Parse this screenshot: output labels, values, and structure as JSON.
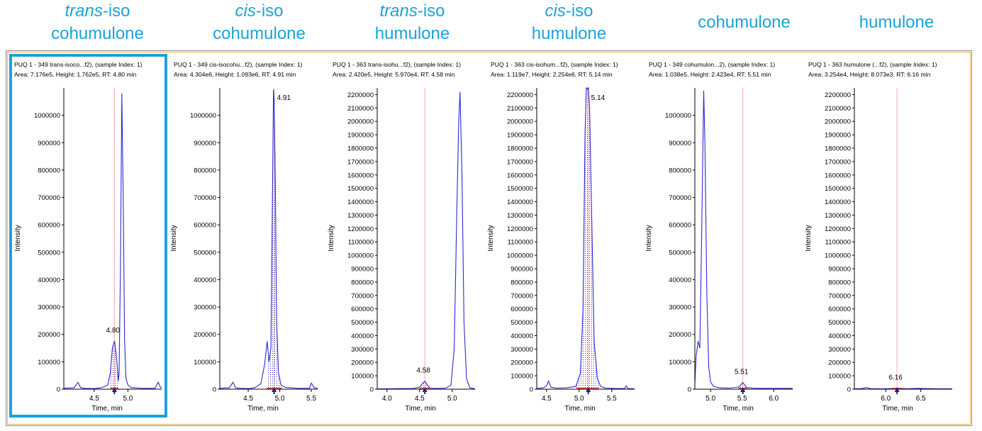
{
  "titles": [
    {
      "italic": "trans",
      "rest": "-iso",
      "line2": "cohumulone"
    },
    {
      "italic": "cis",
      "rest": "-iso",
      "line2": "cohumulone"
    },
    {
      "italic": "trans",
      "rest": "-iso",
      "line2": "humulone"
    },
    {
      "italic": "cis",
      "rest": "-iso",
      "line2": "humulone"
    },
    {
      "italic": "",
      "rest": "",
      "line2": "cohumulone"
    },
    {
      "italic": "",
      "rest": "",
      "line2": "humulone"
    }
  ],
  "colors": {
    "title": "#1aa3d9",
    "trace": "#2b2bd6",
    "rt_marker": "#f4a6b3",
    "baseline": "#e0202a",
    "arrow": "#1a2a6b",
    "highlight": "#1aa3d9"
  },
  "chart_data": [
    {
      "type": "line",
      "header1": "PUQ 1 - 349 trans-isoco...f2), (sample Index: 1)",
      "header2": "Area: 7.176e5, Height: 1.762e5, RT: 4.80 min",
      "xlabel": "Time, min",
      "ylabel": "Intensity",
      "xlim": [
        4.05,
        5.5
      ],
      "ylim": [
        0,
        1100000
      ],
      "yticks": [
        0,
        100000,
        200000,
        300000,
        400000,
        500000,
        600000,
        700000,
        800000,
        900000,
        1000000
      ],
      "ytick_labels": [
        "0",
        "100000",
        "200000",
        "300000",
        "400000",
        "500000",
        "600000",
        "700000",
        "800000",
        "900000",
        "1000000"
      ],
      "xticks": [
        4.5,
        5.0
      ],
      "xtick_labels": [
        "4.5",
        "5.0"
      ],
      "rt": 4.8,
      "rt_label": "4.80",
      "integrated": [
        4.74,
        4.86
      ],
      "series": [
        {
          "x": [
            4.05,
            4.2,
            4.26,
            4.3,
            4.36,
            4.5,
            4.6,
            4.7,
            4.74,
            4.77,
            4.8,
            4.83,
            4.86,
            4.87,
            4.89,
            4.91,
            4.93,
            4.95,
            4.97,
            5.0,
            5.05,
            5.2,
            5.4,
            5.45,
            5.48,
            5.5
          ],
          "y": [
            3000,
            5000,
            25000,
            5000,
            3000,
            2000,
            5000,
            15000,
            60000,
            150000,
            176000,
            120000,
            30000,
            60000,
            450000,
            1080000,
            700000,
            180000,
            40000,
            15000,
            6000,
            3000,
            3000,
            25000,
            8000,
            3000
          ]
        }
      ]
    },
    {
      "type": "line",
      "header1": "PUQ 1 - 349 cis-isocohu...f2), (sample Index: 1)",
      "header2": "Area: 4.304e6, Height: 1.093e6, RT: 4.91 min",
      "xlabel": "Time, min",
      "ylabel": "Intensity",
      "xlim": [
        4.05,
        5.6
      ],
      "ylim": [
        0,
        1100000
      ],
      "yticks": [
        0,
        100000,
        200000,
        300000,
        400000,
        500000,
        600000,
        700000,
        800000,
        900000,
        1000000
      ],
      "ytick_labels": [
        "0",
        "100000",
        "200000",
        "300000",
        "400000",
        "500000",
        "600000",
        "700000",
        "800000",
        "900000",
        "1000000"
      ],
      "xticks": [
        4.5,
        5.0,
        5.5
      ],
      "xtick_labels": [
        "4.5",
        "5.0",
        "5.5"
      ],
      "rt": 4.91,
      "rt_label": "4.91",
      "integrated": [
        4.79,
        5.03
      ],
      "series": [
        {
          "x": [
            4.05,
            4.2,
            4.26,
            4.3,
            4.36,
            4.5,
            4.6,
            4.7,
            4.76,
            4.8,
            4.83,
            4.86,
            4.88,
            4.9,
            4.91,
            4.93,
            4.95,
            4.98,
            5.02,
            5.1,
            5.3,
            5.47,
            5.5,
            5.55,
            5.6
          ],
          "y": [
            3000,
            5000,
            25000,
            5000,
            3000,
            2000,
            5000,
            20000,
            90000,
            175000,
            100000,
            150000,
            600000,
            1093000,
            1060000,
            760000,
            250000,
            60000,
            15000,
            6000,
            3000,
            3000,
            22000,
            5000,
            3000
          ]
        }
      ]
    },
    {
      "type": "line",
      "header1": "PUQ 1 - 363 trans-isohu...f2), (sample Index: 1)",
      "header2": "Area: 2.420e5, Height: 5.970e4, RT: 4.58 min",
      "xlabel": "Time, min",
      "ylabel": "Intensity",
      "xlim": [
        3.85,
        5.35
      ],
      "ylim": [
        0,
        2250000
      ],
      "yticks": [
        0,
        100000,
        200000,
        300000,
        400000,
        500000,
        600000,
        700000,
        800000,
        900000,
        1000000,
        1100000,
        1200000,
        1300000,
        1400000,
        1500000,
        1600000,
        1700000,
        1800000,
        1900000,
        2000000,
        2100000,
        2200000
      ],
      "ytick_labels": [
        "0",
        "100000",
        "200000",
        "300000",
        "400000",
        "500000",
        "600000",
        "700000",
        "800000",
        "900000",
        "1000000",
        "1100000",
        "1200000",
        "1300000",
        "1400000",
        "1500000",
        "1600000",
        "1700000",
        "1800000",
        "1900000",
        "2000000",
        "2100000",
        "2200000"
      ],
      "xticks": [
        4.0,
        4.5,
        5.0
      ],
      "xtick_labels": [
        "4.0",
        "4.5",
        "5.0"
      ],
      "rt": 4.58,
      "rt_label": "4.58",
      "integrated": [
        4.5,
        4.66
      ],
      "series": [
        {
          "x": [
            3.85,
            4.0,
            4.2,
            4.4,
            4.5,
            4.55,
            4.58,
            4.62,
            4.66,
            4.75,
            4.9,
            4.98,
            5.03,
            5.07,
            5.1,
            5.12,
            5.15,
            5.18,
            5.22,
            5.27,
            5.35
          ],
          "y": [
            2000,
            3000,
            4000,
            5000,
            15000,
            45000,
            59700,
            30000,
            8000,
            5000,
            8000,
            30000,
            300000,
            1300000,
            2000000,
            2220000,
            1600000,
            500000,
            80000,
            10000,
            3000
          ]
        }
      ]
    },
    {
      "type": "line",
      "header1": "PUQ 1 - 363 cis-isohum...f2), (sample Index: 1)",
      "header2": "Area: 1.119e7, Height: 2.254e6, RT: 5.14 min",
      "xlabel": "Time, min",
      "ylabel": "Intensity",
      "xlim": [
        4.35,
        5.85
      ],
      "ylim": [
        0,
        2250000
      ],
      "yticks": [
        0,
        100000,
        200000,
        300000,
        400000,
        500000,
        600000,
        700000,
        800000,
        900000,
        1000000,
        1100000,
        1200000,
        1300000,
        1400000,
        1500000,
        1600000,
        1700000,
        1800000,
        1900000,
        2000000,
        2100000,
        2200000
      ],
      "ytick_labels": [
        "0",
        "100000",
        "200000",
        "300000",
        "400000",
        "500000",
        "600000",
        "700000",
        "800000",
        "900000",
        "1000000",
        "1100000",
        "1200000",
        "1300000",
        "1400000",
        "1500000",
        "1600000",
        "1700000",
        "1800000",
        "1900000",
        "2000000",
        "2100000",
        "2200000"
      ],
      "xticks": [
        4.5,
        5.0,
        5.5
      ],
      "xtick_labels": [
        "4.5",
        "5.0",
        "5.5"
      ],
      "rt": 5.14,
      "rt_label": "5.14",
      "integrated": [
        4.96,
        5.3
      ],
      "series": [
        {
          "x": [
            4.35,
            4.45,
            4.5,
            4.53,
            4.57,
            4.65,
            4.8,
            4.95,
            5.02,
            5.06,
            5.09,
            5.11,
            5.13,
            5.14,
            5.16,
            5.19,
            5.23,
            5.28,
            5.33,
            5.4,
            5.55,
            5.7,
            5.72,
            5.75,
            5.85
          ],
          "y": [
            5000,
            10000,
            25000,
            60000,
            15000,
            8000,
            10000,
            20000,
            120000,
            600000,
            1900000,
            2250000,
            2240000,
            2254000,
            2100000,
            1350000,
            350000,
            80000,
            20000,
            8000,
            5000,
            5000,
            25000,
            5000,
            3000
          ]
        }
      ]
    },
    {
      "type": "line",
      "header1": "PUQ 1 - 349 cohumulon...2), (sample Index: 1)",
      "header2": "Area: 1.038e5, Height: 2.423e4, RT: 5.51 min",
      "xlabel": "Time, min",
      "ylabel": "Intensity",
      "xlim": [
        4.75,
        6.3
      ],
      "ylim": [
        0,
        1100000
      ],
      "yticks": [
        0,
        100000,
        200000,
        300000,
        400000,
        500000,
        600000,
        700000,
        800000,
        900000,
        1000000
      ],
      "ytick_labels": [
        "0",
        "100000",
        "200000",
        "300000",
        "400000",
        "500000",
        "600000",
        "700000",
        "800000",
        "900000",
        "1000000"
      ],
      "xticks": [
        5.0,
        5.5,
        6.0
      ],
      "xtick_labels": [
        "5.0",
        "5.5",
        "6.0"
      ],
      "rt": 5.51,
      "rt_label": "5.51",
      "integrated": [
        5.44,
        5.58
      ],
      "series": [
        {
          "x": [
            4.75,
            4.77,
            4.8,
            4.83,
            4.86,
            4.89,
            4.91,
            4.94,
            4.97,
            5.0,
            5.05,
            5.15,
            5.3,
            5.45,
            5.51,
            5.57,
            5.7,
            5.9,
            6.1,
            6.25,
            6.3
          ],
          "y": [
            20000,
            120000,
            175000,
            150000,
            600000,
            1090000,
            900000,
            350000,
            80000,
            25000,
            10000,
            5000,
            4000,
            8000,
            24230,
            6000,
            3000,
            3000,
            3000,
            3000,
            3000
          ]
        }
      ]
    },
    {
      "type": "line",
      "header1": "PUQ 1 - 363 humulone (...f2), (sample Index: 1)",
      "header2": "Area: 3.254e4, Height: 8.073e3, RT: 6.16 min",
      "xlabel": "Time, min",
      "ylabel": "Intensity",
      "xlim": [
        5.55,
        6.95
      ],
      "ylim": [
        0,
        2250000
      ],
      "yticks": [
        0,
        100000,
        200000,
        300000,
        400000,
        500000,
        600000,
        700000,
        800000,
        900000,
        1000000,
        1100000,
        1200000,
        1300000,
        1400000,
        1500000,
        1600000,
        1700000,
        1800000,
        1900000,
        2000000,
        2100000,
        2200000
      ],
      "ytick_labels": [
        "0",
        "100000",
        "200000",
        "300000",
        "400000",
        "500000",
        "600000",
        "700000",
        "800000",
        "900000",
        "1000000",
        "1100000",
        "1200000",
        "1300000",
        "1400000",
        "1500000",
        "1600000",
        "1700000",
        "1800000",
        "1900000",
        "2000000",
        "2100000",
        "2200000"
      ],
      "xticks": [
        6.0,
        6.5
      ],
      "xtick_labels": [
        "6.0",
        "6.5"
      ],
      "rt": 6.16,
      "rt_label": "6.16",
      "integrated": [
        6.08,
        6.24
      ],
      "series": [
        {
          "x": [
            5.55,
            5.65,
            5.72,
            5.78,
            5.85,
            6.0,
            6.1,
            6.16,
            6.22,
            6.3,
            6.45,
            6.6,
            6.75,
            6.9,
            6.95
          ],
          "y": [
            3000,
            4000,
            12000,
            4000,
            3000,
            3000,
            5000,
            8073,
            5000,
            3000,
            6000,
            4000,
            3000,
            3000,
            3000
          ]
        }
      ]
    }
  ]
}
